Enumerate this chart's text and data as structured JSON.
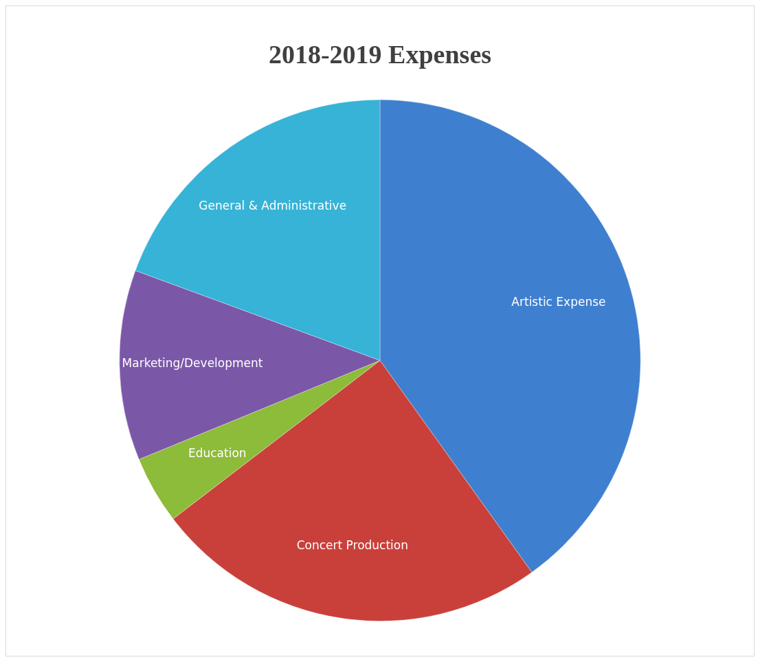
{
  "chart_data": {
    "type": "pie",
    "title": "2018-2019 Expenses",
    "categories": [
      "Artistic Expense",
      "Concert Production",
      "Education",
      "Marketing/Development",
      "General & Administrative"
    ],
    "values": [
      40.1,
      24.5,
      4.2,
      11.8,
      19.4
    ],
    "colors": [
      "#3f7fcf",
      "#c9403b",
      "#8dbb3a",
      "#7b57a8",
      "#36b3d6"
    ],
    "legend": false
  }
}
